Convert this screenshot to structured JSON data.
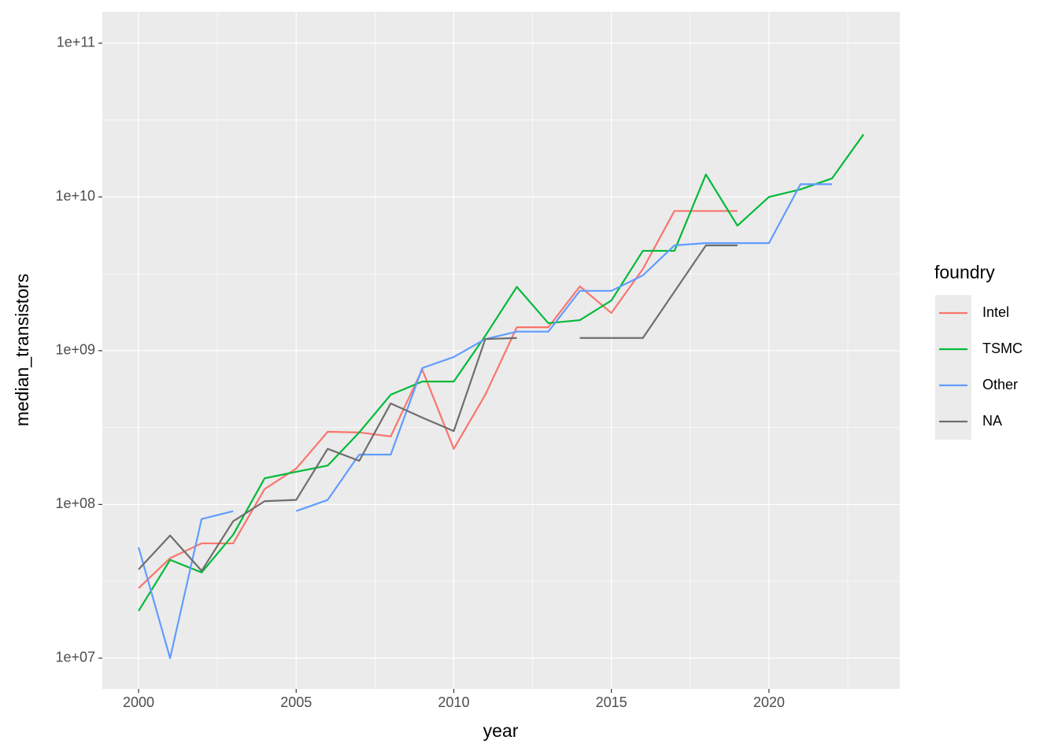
{
  "chart_data": {
    "type": "line",
    "x_label": "year",
    "y_label": "median_transistors",
    "legend_title": "foundry",
    "legend_position": "right",
    "log_y": true,
    "grid": true,
    "x": [
      2000,
      2001,
      2002,
      2003,
      2004,
      2005,
      2006,
      2007,
      2008,
      2009,
      2010,
      2011,
      2012,
      2013,
      2014,
      2015,
      2016,
      2017,
      2018,
      2019,
      2020,
      2021,
      2022,
      2023
    ],
    "xlim": [
      1998.85,
      2024.15
    ],
    "xticks": [
      2000,
      2005,
      2010,
      2015,
      2020
    ],
    "ylim": [
      6310000,
      160000000000
    ],
    "yticks": [
      {
        "value": 10000000,
        "label": "1e+07"
      },
      {
        "value": 100000000,
        "label": "1e+08"
      },
      {
        "value": 1000000000,
        "label": "1e+09"
      },
      {
        "value": 10000000000,
        "label": "1e+10"
      },
      {
        "value": 100000000000,
        "label": "1e+11"
      }
    ],
    "series": [
      {
        "name": "Intel",
        "color": "#F8766D",
        "values": [
          28500000,
          44700000,
          55800000,
          55800000,
          126000000,
          171000000,
          297000000,
          294000000,
          277000000,
          754000000,
          230000000,
          517000000,
          1420000000,
          1420000000,
          2620000000,
          1760000000,
          3400000000,
          8100000000,
          8100000000,
          8100000000,
          null,
          null,
          null,
          null
        ]
      },
      {
        "name": "TSMC",
        "color": "#00BA38",
        "values": [
          20300000,
          43600000,
          36100000,
          63500000,
          148000000,
          163000000,
          179000000,
          294000000,
          517000000,
          630000000,
          630000000,
          1250000000,
          2600000000,
          1510000000,
          1580000000,
          2120000000,
          4460000000,
          4460000000,
          14000000000,
          6500000000,
          10000000000,
          11200000000,
          13200000000,
          25500000000
        ]
      },
      {
        "name": "Other",
        "color": "#619CFF",
        "values": [
          52600000,
          10000000,
          80400000,
          90500000,
          null,
          90500000,
          107000000,
          211000000,
          211000000,
          771000000,
          910000000,
          1190000000,
          1330000000,
          1330000000,
          2450000000,
          2450000000,
          3090000000,
          4840000000,
          5010000000,
          5010000000,
          5010000000,
          12100000000,
          12100000000,
          null
        ]
      },
      {
        "name": "NA",
        "color": "#6E6E6E",
        "values": [
          37800000,
          62800000,
          37000000,
          77700000,
          105000000,
          107000000,
          230000000,
          192000000,
          454000000,
          367000000,
          300000000,
          1190000000,
          1210000000,
          null,
          1210000000,
          1210000000,
          1210000000,
          2420000000,
          4840000000,
          4840000000,
          null,
          null,
          null,
          null
        ]
      }
    ]
  }
}
